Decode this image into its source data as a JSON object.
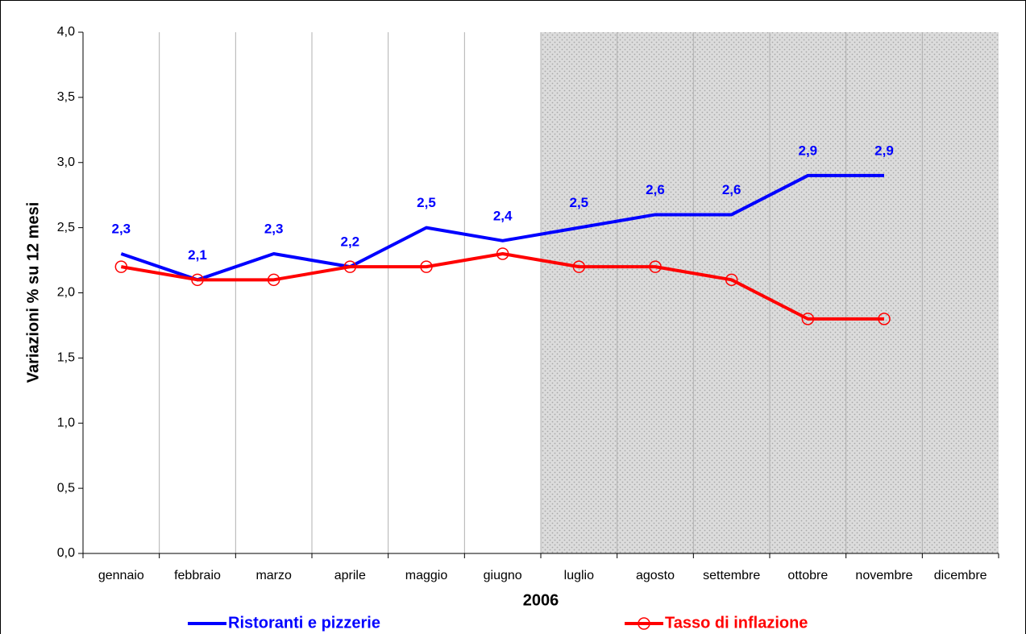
{
  "chart_data": {
    "type": "line",
    "y_label": "Variazioni % su 12 mesi",
    "x_label": "2006",
    "categories": [
      "gennaio",
      "febbraio",
      "marzo",
      "aprile",
      "maggio",
      "giugno",
      "luglio",
      "agosto",
      "settembre",
      "ottobre",
      "novembre",
      "dicembre"
    ],
    "series": [
      {
        "name": "Ristoranti e pizzerie",
        "color": "#0000ff",
        "marker": false,
        "values": [
          2.3,
          2.1,
          2.3,
          2.2,
          2.5,
          2.4,
          2.5,
          2.6,
          2.6,
          2.9,
          2.9,
          null
        ],
        "value_labels": [
          "2,3",
          "2,1",
          "2,3",
          "2,2",
          "2,5",
          "2,4",
          "2,5",
          "2,6",
          "2,6",
          "2,9",
          "2,9",
          null
        ]
      },
      {
        "name": "Tasso di inflazione",
        "color": "#ff0000",
        "marker": true,
        "values": [
          2.2,
          2.1,
          2.1,
          2.2,
          2.2,
          2.3,
          2.2,
          2.2,
          2.1,
          1.8,
          1.8,
          null
        ]
      }
    ],
    "ylim": [
      0,
      4
    ],
    "yticks": [
      {
        "value": 0,
        "label": "0,0"
      },
      {
        "value": 0.5,
        "label": "0,5"
      },
      {
        "value": 1,
        "label": "1,0"
      },
      {
        "value": 1.5,
        "label": "1,5"
      },
      {
        "value": 2,
        "label": "2,0"
      },
      {
        "value": 2.5,
        "label": "2,5"
      },
      {
        "value": 3,
        "label": "3,0"
      },
      {
        "value": 3.5,
        "label": "3,5"
      },
      {
        "value": 4,
        "label": "4,0"
      }
    ],
    "grid": true,
    "legend": "bottom"
  }
}
